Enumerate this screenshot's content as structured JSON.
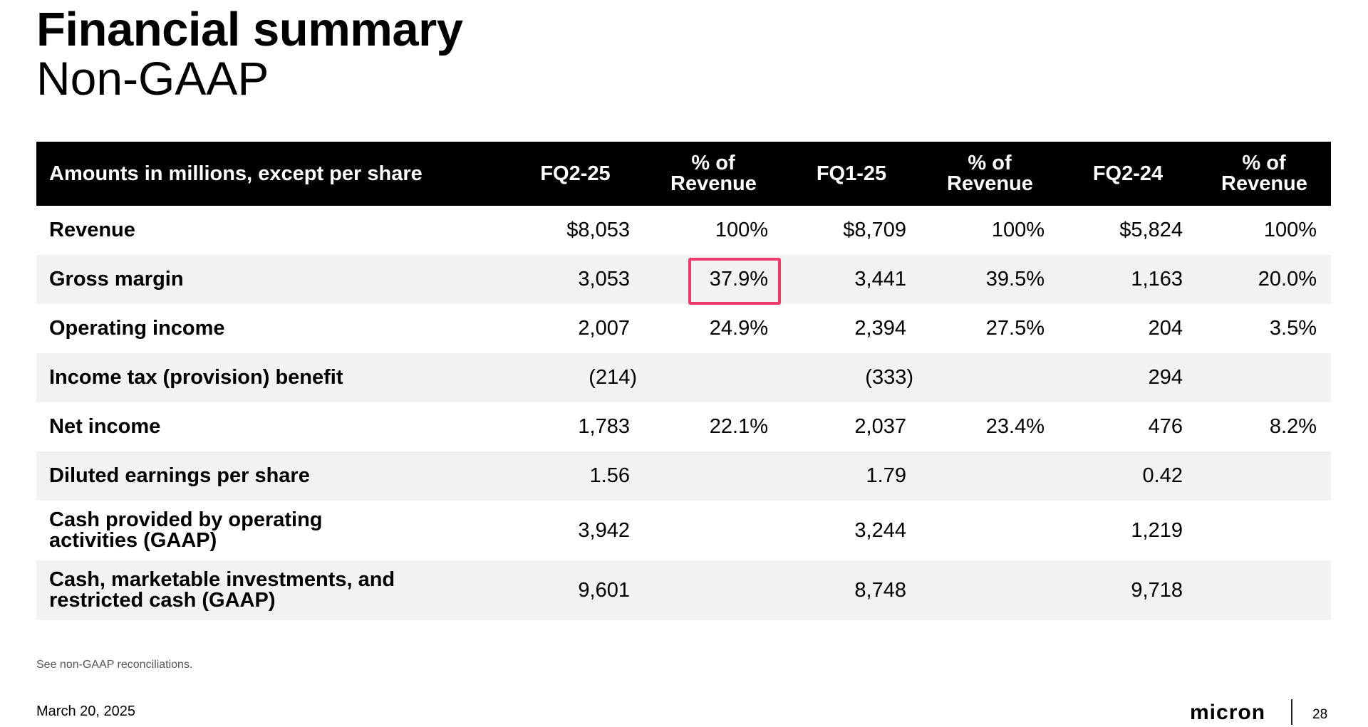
{
  "title": "Financial summary",
  "subtitle": "Non-GAAP",
  "table": {
    "headers": [
      "Amounts in millions, except per share",
      "FQ2-25",
      "% of Revenue",
      "FQ1-25",
      "% of Revenue",
      "FQ2-24",
      "% of Revenue"
    ],
    "rows": [
      {
        "label": "Revenue",
        "values": [
          "$8,053",
          "100%",
          "$8,709",
          "100%",
          "$5,824",
          "100%"
        ]
      },
      {
        "label": "Gross margin",
        "values": [
          "3,053",
          "37.9%",
          "3,441",
          "39.5%",
          "1,163",
          "20.0%"
        ]
      },
      {
        "label": "Operating income",
        "values": [
          "2,007",
          "24.9%",
          "2,394",
          "27.5%",
          "204",
          "3.5%"
        ]
      },
      {
        "label": "Income tax (provision) benefit",
        "values": [
          "(214)",
          "",
          "(333)",
          "",
          "294",
          ""
        ]
      },
      {
        "label": "Net income",
        "values": [
          "1,783",
          "22.1%",
          "2,037",
          "23.4%",
          "476",
          "8.2%"
        ]
      },
      {
        "label": "Diluted earnings per share",
        "values": [
          "1.56",
          "",
          "1.79",
          "",
          "0.42",
          ""
        ]
      },
      {
        "label": "Cash provided by operating activities (GAAP)",
        "values": [
          "3,942",
          "",
          "3,244",
          "",
          "1,219",
          ""
        ]
      },
      {
        "label": "Cash, marketable investments, and restricted cash (GAAP)",
        "values": [
          "9,601",
          "",
          "8,748",
          "",
          "9,718",
          ""
        ]
      }
    ],
    "highlight_color": "#ec3a6d"
  },
  "footnote": "See non-GAAP reconciliations.",
  "date": "March 20, 2025",
  "logo_text": "micron",
  "page_number": "28"
}
